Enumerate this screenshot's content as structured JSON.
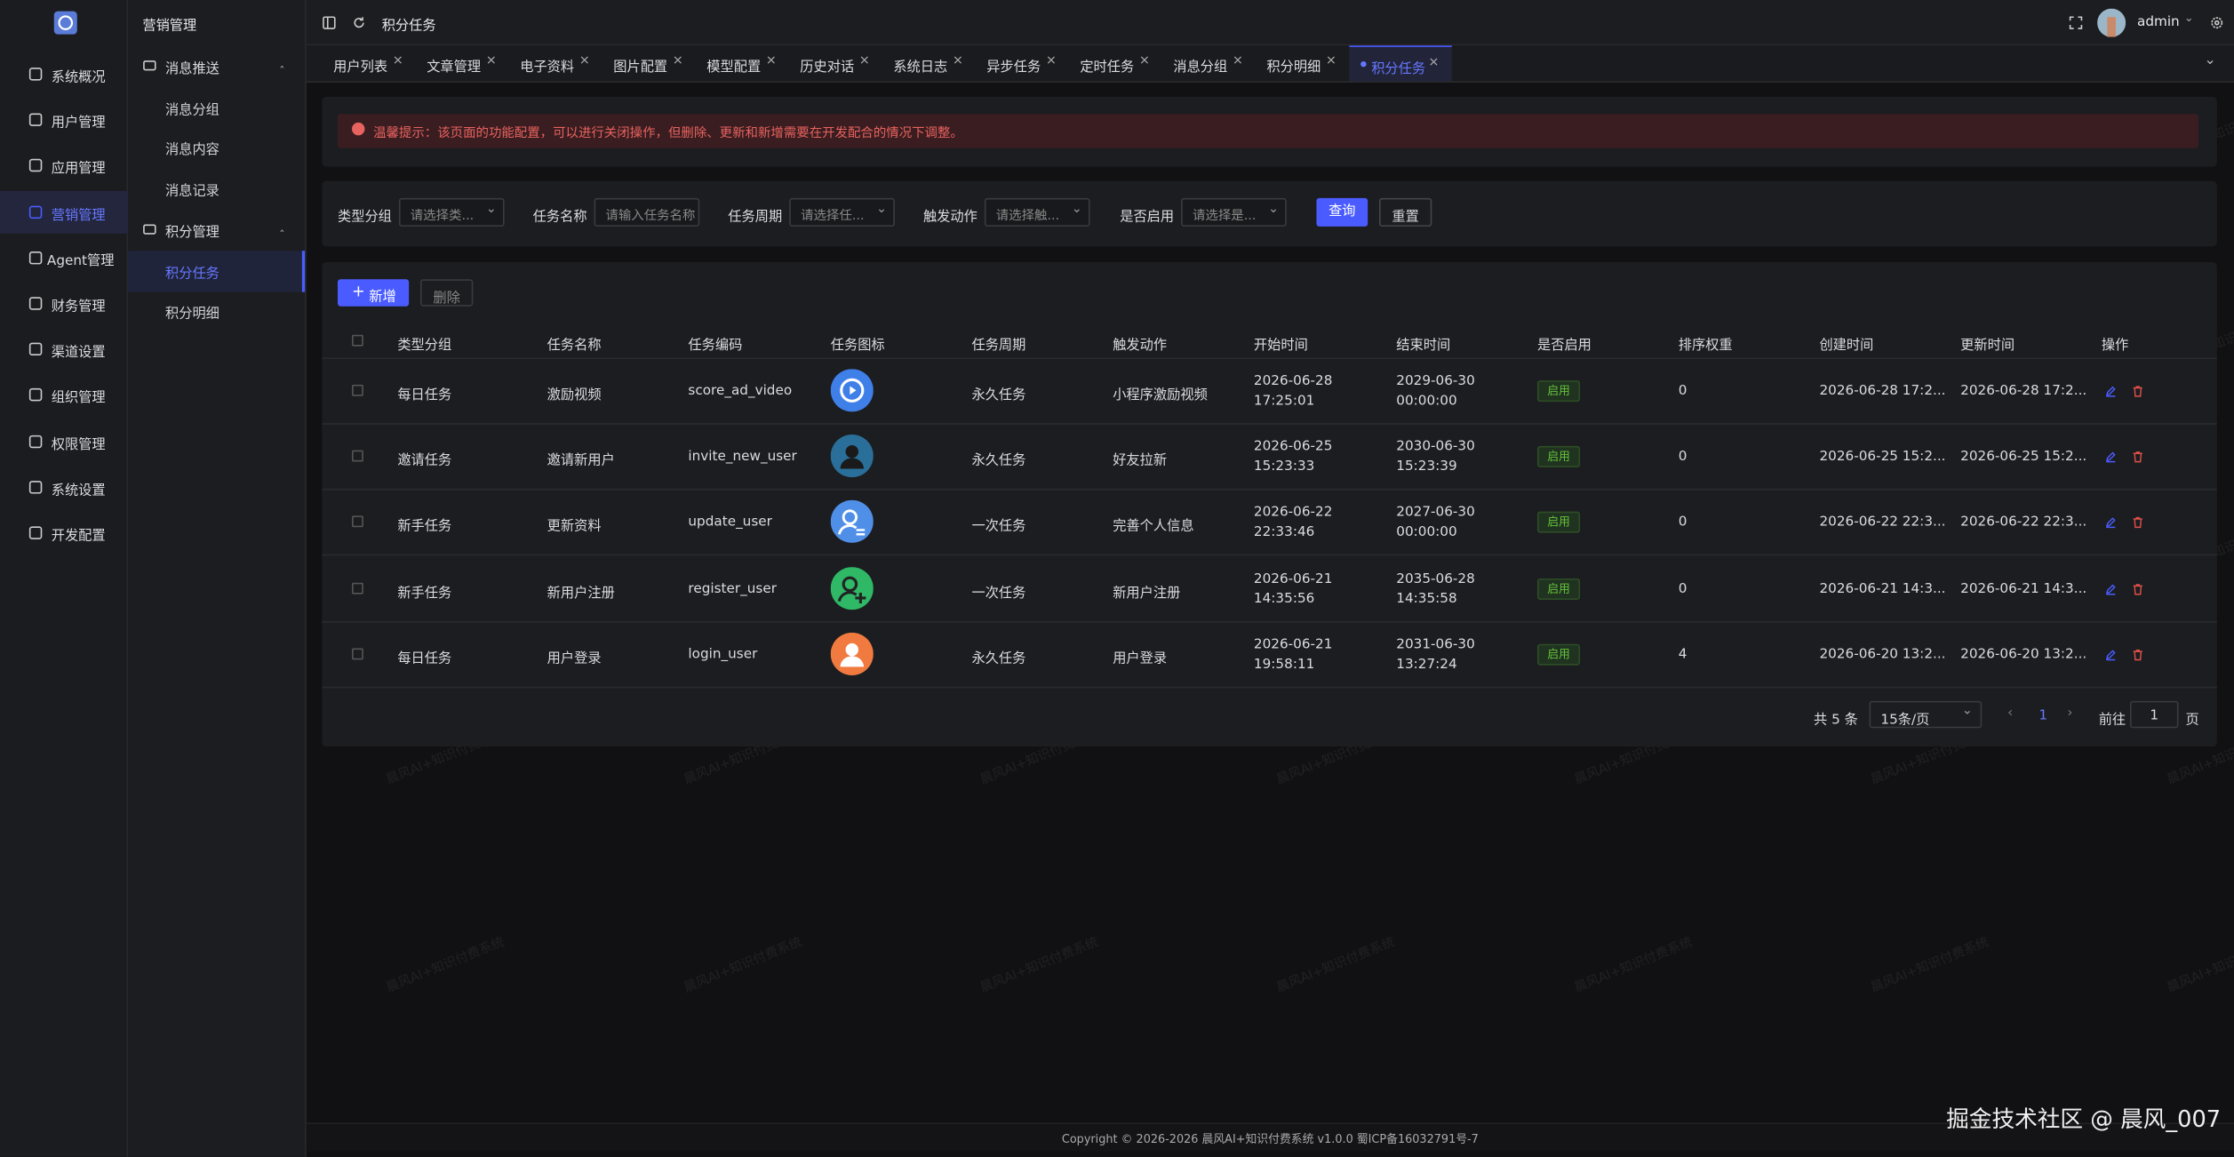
{
  "sidebar": {
    "menu": [
      "系统概况",
      "用户管理",
      "应用管理",
      "营销管理",
      "Agent管理",
      "财务管理",
      "渠道设置",
      "组织管理",
      "权限管理",
      "系统设置",
      "开发配置"
    ]
  },
  "submenu": {
    "title": "营销管理",
    "groups": [
      {
        "label": "消息推送",
        "items": [
          "消息分组",
          "消息内容",
          "消息记录"
        ]
      },
      {
        "label": "积分管理",
        "items": [
          "积分任务",
          "积分明细"
        ]
      }
    ]
  },
  "header": {
    "breadcrumb": "积分任务",
    "user": "admin"
  },
  "tabs": [
    "用户列表",
    "文章管理",
    "电子资料",
    "图片配置",
    "模型配置",
    "历史对话",
    "系统日志",
    "异步任务",
    "定时任务",
    "消息分组",
    "积分明细",
    "积分任务"
  ],
  "alert": "温馨提示：该页面的功能配置，可以进行关闭操作，但删除、更新和新增需要在开发配合的情况下调整。",
  "filters": [
    {
      "label": "类型分组",
      "placeholder": "请选择类..."
    },
    {
      "label": "任务名称",
      "placeholder": "请输入任务名称"
    },
    {
      "label": "任务周期",
      "placeholder": "请选择任..."
    },
    {
      "label": "触发动作",
      "placeholder": "请选择触..."
    },
    {
      "label": "是否启用",
      "placeholder": "请选择是..."
    }
  ],
  "buttons": {
    "query": "查询",
    "reset": "重置",
    "add": "新增",
    "delete": "删除"
  },
  "table": {
    "columns": [
      "类型分组",
      "任务名称",
      "任务编码",
      "任务图标",
      "任务周期",
      "触发动作",
      "开始时间",
      "结束时间",
      "是否启用",
      "排序权重",
      "创建时间",
      "更新时间",
      "操作"
    ],
    "rows": [
      {
        "type": "每日任务",
        "name": "激励视频",
        "code": "score_ad_video",
        "cycle": "永久任务",
        "action": "小程序激励视频",
        "start": "2026-06-28 17:25:01",
        "end": "2029-06-30 00:00:00",
        "status": "启用",
        "weight": 0,
        "created": "2026-06-28 17:2...",
        "updated": "2026-06-28 17:2..."
      },
      {
        "type": "邀请任务",
        "name": "邀请新用户",
        "code": "invite_new_user",
        "cycle": "永久任务",
        "action": "好友拉新",
        "start": "2026-06-25 15:23:33",
        "end": "2030-06-30 15:23:39",
        "status": "启用",
        "weight": 0,
        "created": "2026-06-25 15:2...",
        "updated": "2026-06-25 15:2..."
      },
      {
        "type": "新手任务",
        "name": "更新资料",
        "code": "update_user",
        "cycle": "一次任务",
        "action": "完善个人信息",
        "start": "2026-06-22 22:33:46",
        "end": "2027-06-30 00:00:00",
        "status": "启用",
        "weight": 0,
        "created": "2026-06-22 22:3...",
        "updated": "2026-06-22 22:3..."
      },
      {
        "type": "新手任务",
        "name": "新用户注册",
        "code": "register_user",
        "cycle": "一次任务",
        "action": "新用户注册",
        "start": "2026-06-21 14:35:56",
        "end": "2035-06-28 14:35:58",
        "status": "启用",
        "weight": 0,
        "created": "2026-06-21 14:3...",
        "updated": "2026-06-21 14:3..."
      },
      {
        "type": "每日任务",
        "name": "用户登录",
        "code": "login_user",
        "cycle": "永久任务",
        "action": "用户登录",
        "start": "2026-06-21 19:58:11",
        "end": "2031-06-30 13:27:24",
        "status": "启用",
        "weight": 4,
        "created": "2026-06-20 13:2...",
        "updated": "2026-06-20 13:2..."
      }
    ]
  },
  "pagination": {
    "total": "共 5 条",
    "size": "15条/页",
    "page": 1,
    "goto": "前往",
    "goto_value": 1,
    "page_unit": "页"
  },
  "footer": "Copyright © 2026-2026 晨风AI+知识付费系统 v1.0.0 蜀ICP备16032791号-7",
  "watermark": "晨风AI+知识付费系统",
  "credit": "掘金技术社区 @ 晨风_007"
}
